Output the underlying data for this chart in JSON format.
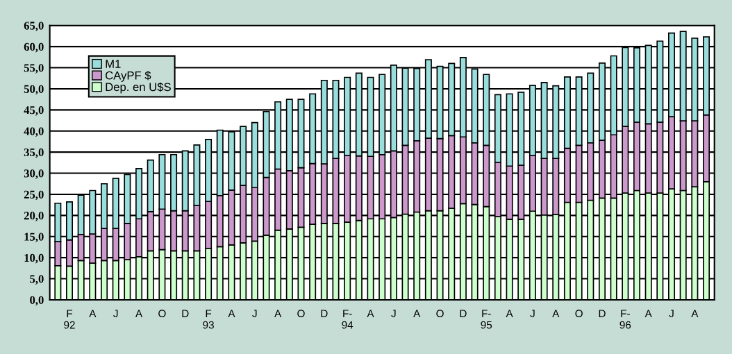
{
  "chart_data": {
    "type": "bar",
    "stacked": true,
    "categories": [
      null,
      "F\n92",
      null,
      "A",
      null,
      "J",
      null,
      "A",
      null,
      "O",
      null,
      "D",
      null,
      "F\n93",
      null,
      "A",
      null,
      "J",
      null,
      "A",
      null,
      "O",
      null,
      "D",
      null,
      "F-\n94",
      null,
      "A",
      null,
      "J",
      null,
      "A",
      null,
      "O",
      null,
      "D",
      null,
      "F-\n95",
      null,
      "A",
      null,
      "J",
      null,
      "A",
      null,
      "O",
      null,
      "D",
      null,
      "F-\n96",
      null,
      "A",
      null,
      "J",
      null,
      "A",
      null
    ],
    "series": [
      {
        "name": "Dep. en U$S",
        "color": "#ccffcc",
        "values": [
          8.1,
          8.0,
          9.3,
          8.7,
          9.3,
          9.3,
          9.5,
          10.2,
          11.6,
          11.9,
          11.6,
          11.6,
          11.6,
          12.2,
          12.6,
          13.0,
          13.5,
          13.9,
          15.3,
          16.5,
          16.8,
          17.2,
          17.9,
          18.1,
          18.1,
          18.4,
          18.8,
          19.2,
          19.2,
          19.5,
          20.3,
          20.8,
          21.1,
          21.1,
          21.7,
          22.8,
          22.6,
          22.1,
          19.7,
          19.1,
          19.1,
          21.0,
          20.1,
          20.2,
          23.1,
          23.1,
          23.6,
          24.1,
          24.1,
          25.3,
          25.9,
          25.3,
          25.3,
          26.3,
          25.9,
          26.8,
          28.0
        ]
      },
      {
        "name": "CAyPF $",
        "color": "#cc99cc",
        "values": [
          5.7,
          6.2,
          6.2,
          6.9,
          7.6,
          7.6,
          8.6,
          9.0,
          9.3,
          9.6,
          9.5,
          9.5,
          10.8,
          11.1,
          12.1,
          13.0,
          13.6,
          12.7,
          13.7,
          14.5,
          13.8,
          14.1,
          14.4,
          14.1,
          15.4,
          15.8,
          15.3,
          14.8,
          15.2,
          15.8,
          16.3,
          16.9,
          17.2,
          17.1,
          17.2,
          15.8,
          14.6,
          14.5,
          12.9,
          12.6,
          12.8,
          13.2,
          13.4,
          13.3,
          12.8,
          13.5,
          13.6,
          13.7,
          15.0,
          15.8,
          16.2,
          16.4,
          16.8,
          17.1,
          16.5,
          15.6,
          15.8
        ]
      },
      {
        "name": "M1",
        "color": "#99dddd",
        "values": [
          9.1,
          9.0,
          9.3,
          10.3,
          10.6,
          11.9,
          11.6,
          11.9,
          12.2,
          12.9,
          13.3,
          14.2,
          14.3,
          14.7,
          15.5,
          13.8,
          14.0,
          15.4,
          15.6,
          15.9,
          16.9,
          16.2,
          16.5,
          19.8,
          18.5,
          18.5,
          19.6,
          18.7,
          19.0,
          20.3,
          18.3,
          17.1,
          18.6,
          17.1,
          17.1,
          18.8,
          17.5,
          16.8,
          16.0,
          17.1,
          17.3,
          16.6,
          18.0,
          17.2,
          16.9,
          16.2,
          16.5,
          18.3,
          18.7,
          18.7,
          17.6,
          18.6,
          19.2,
          19.8,
          21.2,
          19.6,
          18.5
        ]
      }
    ],
    "ylim": [
      0,
      65
    ],
    "yticks": [
      {
        "value": 0,
        "label": "0,0"
      },
      {
        "value": 5,
        "label": "5,0"
      },
      {
        "value": 10,
        "label": "10,0"
      },
      {
        "value": 15,
        "label": "15,0"
      },
      {
        "value": 20,
        "label": "20,0"
      },
      {
        "value": 25,
        "label": "25,0"
      },
      {
        "value": 30,
        "label": "30,0"
      },
      {
        "value": 35,
        "label": "35,0"
      },
      {
        "value": 40,
        "label": "40,0"
      },
      {
        "value": 45,
        "label": "45,0"
      },
      {
        "value": 50,
        "label": "50,0"
      },
      {
        "value": 55,
        "label": "55,0"
      },
      {
        "value": 60,
        "label": "60,0"
      },
      {
        "value": 65,
        "label": "65,0"
      }
    ],
    "grid": "y",
    "legend": "top left"
  }
}
